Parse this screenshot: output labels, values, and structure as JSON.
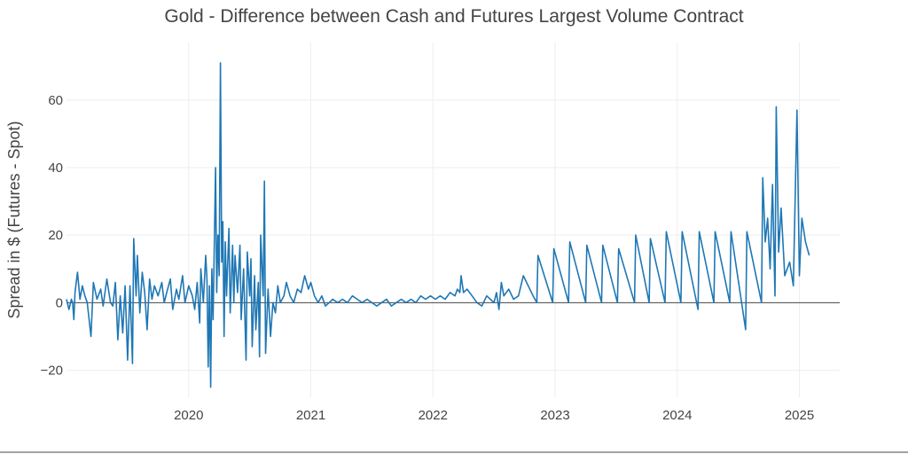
{
  "chart_data": {
    "type": "line",
    "title": "Gold - Difference between Cash and Futures Largest Volume Contract",
    "xlabel": "",
    "ylabel": "Spread in $ (Futures - Spot)",
    "xlim": [
      2019.0,
      2025.33
    ],
    "ylim": [
      -28,
      77
    ],
    "x_ticks": [
      2020,
      2021,
      2022,
      2023,
      2024,
      2025
    ],
    "x_tick_labels": [
      "2020",
      "2021",
      "2022",
      "2023",
      "2024",
      "2025"
    ],
    "y_ticks": [
      -20,
      0,
      20,
      40,
      60
    ],
    "y_tick_labels": [
      "−20",
      "0",
      "20",
      "40",
      "60"
    ],
    "grid": true,
    "legend": "none",
    "colors": {
      "series": "#1f77b4",
      "zero_line": "#444444",
      "grid": "#eeeeee",
      "text": "#444444"
    },
    "series": [
      {
        "name": "Spread",
        "points": [
          [
            2019.0,
            1
          ],
          [
            2019.02,
            -2
          ],
          [
            2019.04,
            1
          ],
          [
            2019.05,
            0
          ],
          [
            2019.06,
            -5
          ],
          [
            2019.07,
            3
          ],
          [
            2019.09,
            9
          ],
          [
            2019.11,
            1
          ],
          [
            2019.13,
            5
          ],
          [
            2019.15,
            2
          ],
          [
            2019.17,
            0
          ],
          [
            2019.2,
            -10
          ],
          [
            2019.22,
            6
          ],
          [
            2019.25,
            1
          ],
          [
            2019.28,
            4
          ],
          [
            2019.3,
            -1
          ],
          [
            2019.33,
            7
          ],
          [
            2019.36,
            0
          ],
          [
            2019.38,
            -1
          ],
          [
            2019.4,
            6
          ],
          [
            2019.42,
            -11
          ],
          [
            2019.44,
            2
          ],
          [
            2019.46,
            -9
          ],
          [
            2019.48,
            5
          ],
          [
            2019.5,
            -17
          ],
          [
            2019.52,
            5
          ],
          [
            2019.54,
            -18
          ],
          [
            2019.55,
            19
          ],
          [
            2019.57,
            2
          ],
          [
            2019.58,
            14
          ],
          [
            2019.6,
            -3
          ],
          [
            2019.62,
            9
          ],
          [
            2019.64,
            3
          ],
          [
            2019.66,
            -8
          ],
          [
            2019.68,
            7
          ],
          [
            2019.7,
            1
          ],
          [
            2019.72,
            5
          ],
          [
            2019.75,
            2
          ],
          [
            2019.78,
            6
          ],
          [
            2019.8,
            0
          ],
          [
            2019.82,
            3
          ],
          [
            2019.85,
            7
          ],
          [
            2019.87,
            -2
          ],
          [
            2019.9,
            4
          ],
          [
            2019.92,
            1
          ],
          [
            2019.95,
            8
          ],
          [
            2019.97,
            0
          ],
          [
            2020.0,
            5
          ],
          [
            2020.03,
            2
          ],
          [
            2020.05,
            -2
          ],
          [
            2020.07,
            6
          ],
          [
            2020.09,
            -6
          ],
          [
            2020.1,
            10
          ],
          [
            2020.12,
            0
          ],
          [
            2020.14,
            14
          ],
          [
            2020.15,
            7
          ],
          [
            2020.16,
            -19
          ],
          [
            2020.17,
            5
          ],
          [
            2020.18,
            -25
          ],
          [
            2020.19,
            10
          ],
          [
            2020.2,
            -5
          ],
          [
            2020.22,
            40
          ],
          [
            2020.23,
            3
          ],
          [
            2020.24,
            20
          ],
          [
            2020.25,
            8
          ],
          [
            2020.26,
            71
          ],
          [
            2020.27,
            12
          ],
          [
            2020.28,
            24
          ],
          [
            2020.29,
            -10
          ],
          [
            2020.3,
            18
          ],
          [
            2020.31,
            2
          ],
          [
            2020.33,
            22
          ],
          [
            2020.34,
            -3
          ],
          [
            2020.36,
            17
          ],
          [
            2020.37,
            0
          ],
          [
            2020.38,
            14
          ],
          [
            2020.4,
            3
          ],
          [
            2020.42,
            17
          ],
          [
            2020.43,
            -5
          ],
          [
            2020.45,
            10
          ],
          [
            2020.47,
            -17
          ],
          [
            2020.48,
            15
          ],
          [
            2020.5,
            2
          ],
          [
            2020.51,
            13
          ],
          [
            2020.52,
            -13
          ],
          [
            2020.54,
            8
          ],
          [
            2020.55,
            -8
          ],
          [
            2020.57,
            6
          ],
          [
            2020.58,
            -16
          ],
          [
            2020.59,
            20
          ],
          [
            2020.61,
            2
          ],
          [
            2020.62,
            36
          ],
          [
            2020.63,
            -15
          ],
          [
            2020.65,
            4
          ],
          [
            2020.67,
            -10
          ],
          [
            2020.69,
            0
          ],
          [
            2020.71,
            -3
          ],
          [
            2020.73,
            5
          ],
          [
            2020.75,
            0
          ],
          [
            2020.78,
            2
          ],
          [
            2020.8,
            6
          ],
          [
            2020.83,
            2
          ],
          [
            2020.86,
            0
          ],
          [
            2020.89,
            4
          ],
          [
            2020.92,
            3
          ],
          [
            2020.95,
            8
          ],
          [
            2020.98,
            4
          ],
          [
            2021.0,
            6
          ],
          [
            2021.03,
            2
          ],
          [
            2021.06,
            0
          ],
          [
            2021.09,
            2
          ],
          [
            2021.12,
            -1
          ],
          [
            2021.15,
            0
          ],
          [
            2021.18,
            1
          ],
          [
            2021.22,
            0
          ],
          [
            2021.26,
            1
          ],
          [
            2021.3,
            0
          ],
          [
            2021.34,
            2
          ],
          [
            2021.38,
            1
          ],
          [
            2021.42,
            0
          ],
          [
            2021.46,
            1
          ],
          [
            2021.5,
            0
          ],
          [
            2021.54,
            -1
          ],
          [
            2021.58,
            0
          ],
          [
            2021.62,
            1
          ],
          [
            2021.66,
            -1
          ],
          [
            2021.7,
            0
          ],
          [
            2021.74,
            1
          ],
          [
            2021.78,
            0
          ],
          [
            2021.82,
            1
          ],
          [
            2021.86,
            0
          ],
          [
            2021.9,
            2
          ],
          [
            2021.94,
            1
          ],
          [
            2021.98,
            2
          ],
          [
            2022.02,
            1
          ],
          [
            2022.06,
            2
          ],
          [
            2022.1,
            1
          ],
          [
            2022.14,
            3
          ],
          [
            2022.18,
            2
          ],
          [
            2022.2,
            4
          ],
          [
            2022.22,
            3
          ],
          [
            2022.23,
            8
          ],
          [
            2022.25,
            3
          ],
          [
            2022.28,
            4
          ],
          [
            2022.32,
            2
          ],
          [
            2022.36,
            0
          ],
          [
            2022.4,
            -1
          ],
          [
            2022.44,
            2
          ],
          [
            2022.47,
            1
          ],
          [
            2022.5,
            0
          ],
          [
            2022.52,
            3
          ],
          [
            2022.54,
            -2
          ],
          [
            2022.56,
            6
          ],
          [
            2022.58,
            2
          ],
          [
            2022.62,
            4
          ],
          [
            2022.66,
            1
          ],
          [
            2022.7,
            2
          ],
          [
            2022.74,
            8
          ],
          [
            2022.78,
            5
          ],
          [
            2022.82,
            2
          ],
          [
            2022.85,
            0
          ],
          [
            2022.86,
            14
          ],
          [
            2022.98,
            0
          ],
          [
            2022.99,
            16
          ],
          [
            2023.11,
            0
          ],
          [
            2023.12,
            18
          ],
          [
            2023.25,
            0
          ],
          [
            2023.26,
            17
          ],
          [
            2023.38,
            0
          ],
          [
            2023.39,
            17
          ],
          [
            2023.51,
            0
          ],
          [
            2023.52,
            16
          ],
          [
            2023.65,
            0
          ],
          [
            2023.66,
            20
          ],
          [
            2023.77,
            0
          ],
          [
            2023.78,
            19
          ],
          [
            2023.9,
            0
          ],
          [
            2023.91,
            21
          ],
          [
            2024.03,
            0
          ],
          [
            2024.04,
            21
          ],
          [
            2024.17,
            -2
          ],
          [
            2024.18,
            21
          ],
          [
            2024.3,
            0
          ],
          [
            2024.31,
            21
          ],
          [
            2024.43,
            0
          ],
          [
            2024.44,
            21
          ],
          [
            2024.56,
            -8
          ],
          [
            2024.57,
            21
          ],
          [
            2024.69,
            0
          ],
          [
            2024.7,
            37
          ],
          [
            2024.72,
            18
          ],
          [
            2024.74,
            25
          ],
          [
            2024.76,
            10
          ],
          [
            2024.78,
            35
          ],
          [
            2024.8,
            2
          ],
          [
            2024.81,
            58
          ],
          [
            2024.83,
            15
          ],
          [
            2024.85,
            28
          ],
          [
            2024.88,
            8
          ],
          [
            2024.92,
            12
          ],
          [
            2024.95,
            5
          ],
          [
            2024.98,
            57
          ],
          [
            2025.0,
            8
          ],
          [
            2025.02,
            25
          ],
          [
            2025.05,
            18
          ],
          [
            2025.08,
            14
          ]
        ]
      }
    ]
  }
}
